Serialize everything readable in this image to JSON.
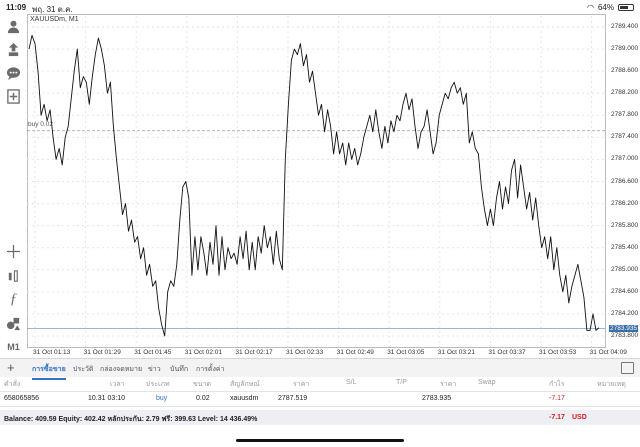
{
  "statusbar": {
    "time": "11:09",
    "date": "พฤ. 31 ต.ค.",
    "battery": "64%"
  },
  "toolbar": {
    "icons": [
      "person-icon",
      "change-icon",
      "chat-icon",
      "add-indicator-icon",
      "crosshair-icon",
      "objects-icon",
      "function-icon",
      "shapes-icon"
    ],
    "timeframe": "M1"
  },
  "chart": {
    "symbol": "XAUUSDm, M1",
    "buy_line_label": "buy 0.02",
    "buy_price": 2787.52,
    "current_price": 2783.935,
    "current_price_label": "2783.935",
    "y_ticks": [
      "2789.400",
      "2789.000",
      "2788.600",
      "2788.200",
      "2787.800",
      "2787.400",
      "2787.000",
      "2786.600",
      "2786.200",
      "2785.800",
      "2785.400",
      "2785.000",
      "2784.600",
      "2784.200",
      "2783.800"
    ],
    "x_ticks": [
      "31 Oct 01:13",
      "31 Oct 01:29",
      "31 Oct 01:45",
      "31 Oct 02:01",
      "31 Oct 02:17",
      "31 Oct 02:33",
      "31 Oct 02:49",
      "31 Oct 03:05",
      "31 Oct 03:21",
      "31 Oct 03:37",
      "31 Oct 03:53",
      "31 Oct 04:09"
    ]
  },
  "chart_data": {
    "type": "line",
    "ylim": [
      2783.6,
      2789.6
    ],
    "x_start": "31 Oct 01:08",
    "x_end": "31 Oct 04:09",
    "series": [
      {
        "values": [
          2789.0,
          2789.25,
          2789.1,
          2788.6,
          2787.8,
          2788.0,
          2787.7,
          2787.9,
          2787.4,
          2787.0,
          2787.2,
          2786.9,
          2787.4,
          2787.6,
          2788.1,
          2788.6,
          2789.0,
          2788.3,
          2788.5,
          2788.4,
          2788.0,
          2788.5,
          2788.9,
          2789.2,
          2789.0,
          2788.7,
          2788.2,
          2788.4,
          2787.6,
          2787.0,
          2786.5,
          2786.0,
          2786.2,
          2785.7,
          2785.9,
          2785.5,
          2785.6,
          2785.2,
          2785.4,
          2784.9,
          2785.1,
          2784.7,
          2784.8,
          2784.3,
          2784.0,
          2783.8,
          2784.6,
          2784.8,
          2784.7,
          2785.1,
          2785.9,
          2786.5,
          2786.6,
          2786.3,
          2784.9,
          2785.6,
          2785.0,
          2785.6,
          2785.3,
          2784.9,
          2785.5,
          2785.1,
          2785.8,
          2784.9,
          2785.6,
          2785.0,
          2785.4,
          2785.2,
          2785.3,
          2785.1,
          2785.6,
          2785.2,
          2785.7,
          2785.0,
          2785.5,
          2785.0,
          2785.6,
          2785.3,
          2785.8,
          2785.4,
          2785.6,
          2785.1,
          2785.7,
          2785.2,
          2785.0,
          2787.0,
          2788.0,
          2788.8,
          2789.0,
          2788.9,
          2789.1,
          2788.7,
          2788.9,
          2788.4,
          2788.6,
          2788.2,
          2787.8,
          2788.0,
          2787.5,
          2787.9,
          2787.6,
          2787.1,
          2787.5,
          2787.1,
          2787.3,
          2786.9,
          2787.3,
          2787.0,
          2787.2,
          2786.9,
          2787.1,
          2787.4,
          2787.6,
          2787.8,
          2787.5,
          2787.9,
          2787.5,
          2787.2,
          2787.6,
          2787.3,
          2787.7,
          2787.5,
          2787.8,
          2787.7,
          2788.0,
          2788.2,
          2787.9,
          2788.1,
          2787.6,
          2787.2,
          2787.5,
          2787.6,
          2787.9,
          2787.5,
          2787.1,
          2787.3,
          2787.8,
          2788.0,
          2788.2,
          2788.1,
          2788.3,
          2788.4,
          2788.2,
          2788.3,
          2788.0,
          2788.2,
          2787.3,
          2787.5,
          2787.2,
          2787.1,
          2786.5,
          2786.1,
          2785.8,
          2786.1,
          2785.8,
          2786.3,
          2786.6,
          2786.1,
          2786.5,
          2786.2,
          2786.8,
          2787.0,
          2786.3,
          2786.9,
          2786.5,
          2786.1,
          2786.4,
          2785.9,
          2786.3,
          2785.8,
          2785.4,
          2785.6,
          2785.2,
          2785.6,
          2785.0,
          2785.4,
          2784.9,
          2784.6,
          2784.9,
          2784.4,
          2784.7,
          2784.9,
          2785.1,
          2784.8,
          2784.5,
          2783.9,
          2783.9,
          2784.2,
          2783.9,
          2783.95
        ]
      }
    ]
  },
  "tabs": [
    "การซื้อขาย",
    "ประวัติ",
    "กล่องจดหมาย",
    "ข่าว",
    "บันทึก",
    "การตั้งค่า"
  ],
  "table": {
    "headers": [
      "คำสั่ง",
      "เวลา",
      "ประเภท",
      "ขนาด",
      "สัญลักษณ์",
      "ราคา",
      "S/L",
      "T/P",
      "ราคา",
      "Swap",
      "กำไร",
      "หมายเหตุ"
    ],
    "row": {
      "order": "658065856",
      "time": "10.31 03:10",
      "type": "buy",
      "volume": "0.02",
      "symbol": "xauusdm",
      "price": "2787.519",
      "sl": "",
      "tp": "",
      "cur_price": "2783.935",
      "swap": "",
      "profit": "-7.17",
      "comment": ""
    }
  },
  "balance": {
    "text": "Balance: 409.59 Equity: 402.42 หลักประกัน: 2.79 ฟรี: 399.63 Level: 14 436.49%",
    "profit": "-7.17",
    "currency": "USD"
  },
  "colors": {
    "accent": "#3272c2",
    "loss": "#d21d1d",
    "price_tag": "#3c6ea8"
  }
}
